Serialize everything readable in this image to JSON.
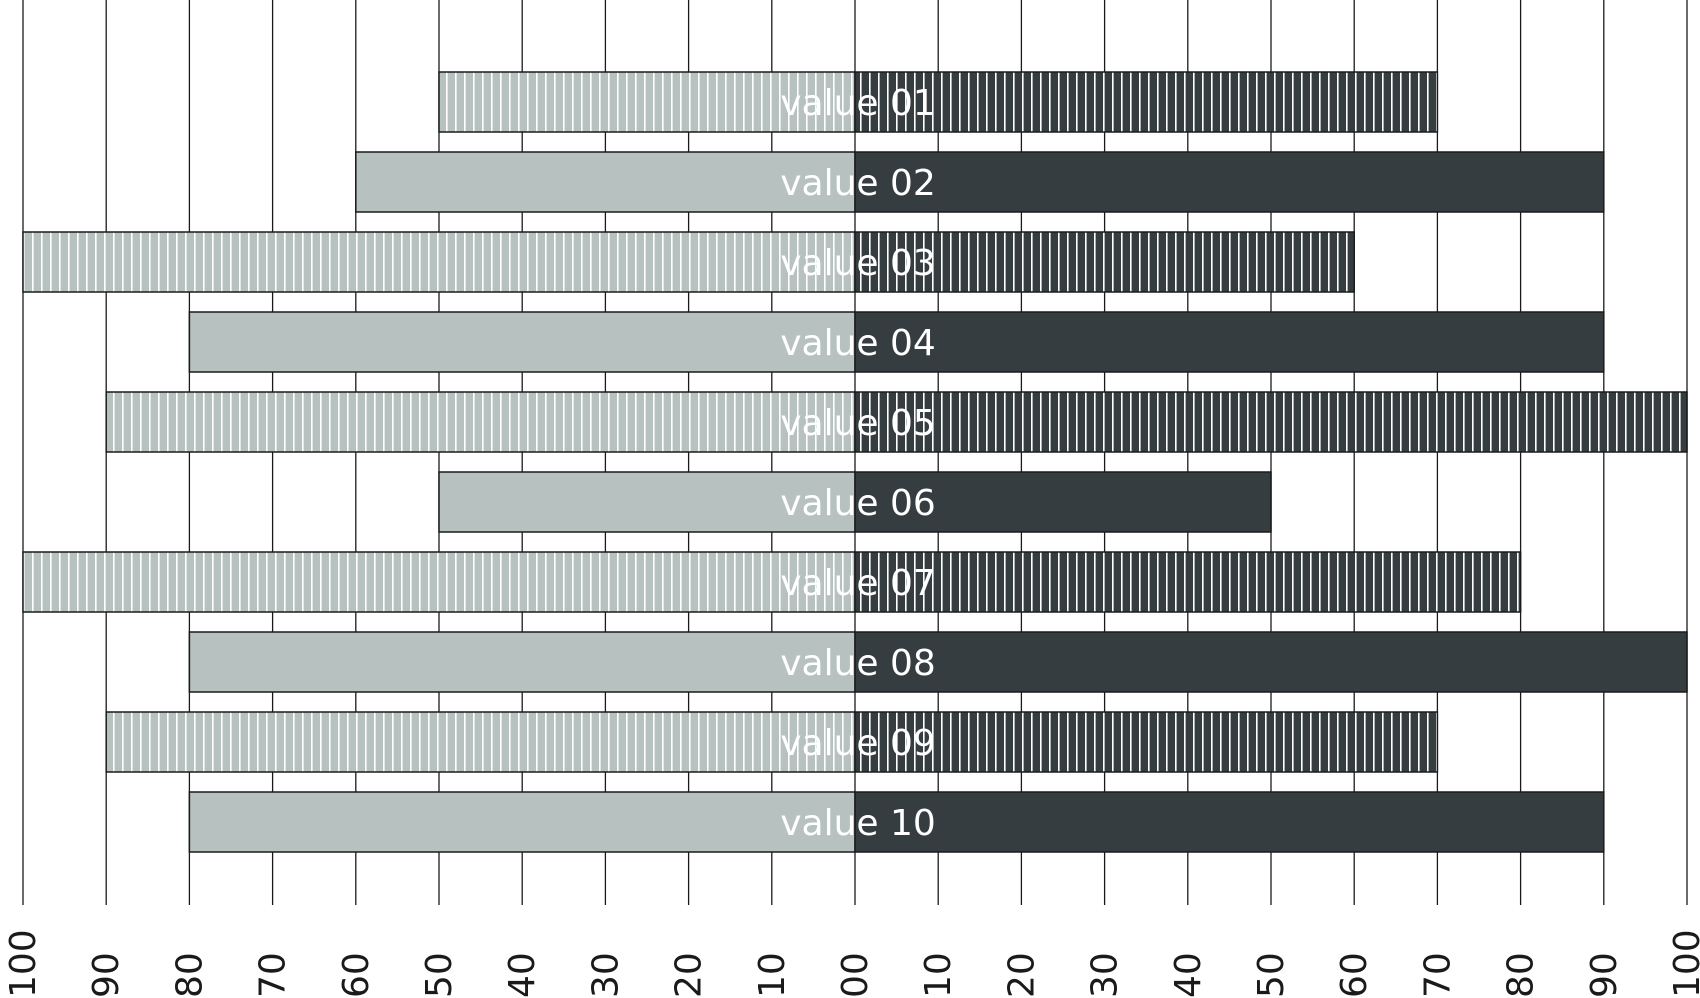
{
  "chart_data": {
    "type": "bar",
    "orientation": "horizontal-diverging",
    "title": "",
    "xlabel": "",
    "ylabel": "",
    "xlim_left": [
      100,
      0
    ],
    "xlim_right": [
      0,
      100
    ],
    "grid": true,
    "legend": "none",
    "left_tick_labels": [
      "100",
      "90",
      "80",
      "70",
      "60",
      "50",
      "40",
      "30",
      "20",
      "10",
      "00"
    ],
    "right_tick_labels": [
      "10",
      "20",
      "30",
      "40",
      "50",
      "60",
      "70",
      "80",
      "90",
      "100"
    ],
    "categories": [
      "value 01",
      "value 02",
      "value 03",
      "value 04",
      "value 05",
      "value 06",
      "value 07",
      "value 08",
      "value 09",
      "value 10"
    ],
    "series": [
      {
        "side": "left",
        "color": "#b7c2c0",
        "values": [
          50,
          60,
          100,
          80,
          90,
          50,
          100,
          80,
          90,
          80
        ]
      },
      {
        "side": "right",
        "color": "#363d40",
        "values": [
          70,
          90,
          60,
          90,
          100,
          50,
          80,
          100,
          70,
          90
        ]
      }
    ],
    "striped": [
      true,
      false,
      true,
      false,
      true,
      false,
      true,
      false,
      true,
      false
    ]
  }
}
